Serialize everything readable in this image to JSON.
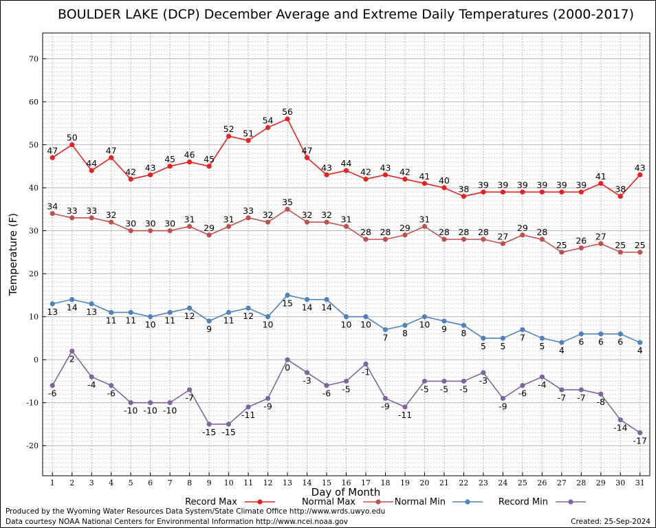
{
  "chart_data": {
    "type": "line",
    "title": "BOULDER LAKE (DCP) December Average and Extreme Daily Temperatures (2000-2017)",
    "xlabel": "Day of Month",
    "ylabel": "Temperature (F)",
    "xlim": [
      0.5,
      31.5
    ],
    "ylim": [
      -27,
      76
    ],
    "yticks": [
      -20,
      -10,
      0,
      10,
      20,
      30,
      40,
      50,
      60,
      70
    ],
    "x": [
      1,
      2,
      3,
      4,
      5,
      6,
      7,
      8,
      9,
      10,
      11,
      12,
      13,
      14,
      15,
      16,
      17,
      18,
      19,
      20,
      21,
      22,
      23,
      24,
      25,
      26,
      27,
      28,
      29,
      30,
      31
    ],
    "grid": true,
    "legend_position": "bottom",
    "series": [
      {
        "name": "Record Max",
        "color": "#e8201f",
        "label_pos": "above",
        "values": [
          47,
          50,
          44,
          47,
          42,
          43,
          45,
          46,
          45,
          52,
          51,
          54,
          56,
          47,
          43,
          44,
          42,
          43,
          42,
          41,
          40,
          38,
          39,
          39,
          39,
          39,
          39,
          39,
          41,
          38,
          43
        ]
      },
      {
        "name": "Normal Max",
        "color": "#c0504d",
        "label_pos": "above",
        "values": [
          34,
          33,
          33,
          32,
          30,
          30,
          30,
          31,
          29,
          31,
          33,
          32,
          35,
          32,
          32,
          31,
          28,
          28,
          29,
          31,
          28,
          28,
          28,
          27,
          29,
          28,
          25,
          26,
          27,
          25,
          25
        ]
      },
      {
        "name": "Normal Min",
        "color": "#4f81bd",
        "label_pos": "below",
        "values": [
          13,
          14,
          13,
          11,
          11,
          10,
          11,
          12,
          9,
          11,
          12,
          10,
          15,
          14,
          14,
          10,
          10,
          7,
          8,
          10,
          9,
          8,
          5,
          5,
          7,
          5,
          4,
          6,
          6,
          6,
          4
        ]
      },
      {
        "name": "Record Min",
        "color": "#8064a2",
        "label_pos": "below",
        "values": [
          -6,
          2,
          -4,
          -6,
          -10,
          -10,
          -10,
          -7,
          -15,
          -15,
          -11,
          -9,
          0,
          -3,
          -6,
          -5,
          -1,
          -9,
          -11,
          -5,
          -5,
          -5,
          -3,
          -9,
          -6,
          -4,
          -7,
          -7,
          -8,
          -14,
          -17
        ]
      }
    ]
  },
  "footer": {
    "produced_by": "Produced by the Wyoming Water Resources Data System/State Climate Office http://www.wrds.uwyo.edu",
    "courtesy": "Data courtesy NOAA National Centers for Environmental Information http://www.ncei.noaa.gov",
    "created": "Created: 25-Sep-2024"
  }
}
